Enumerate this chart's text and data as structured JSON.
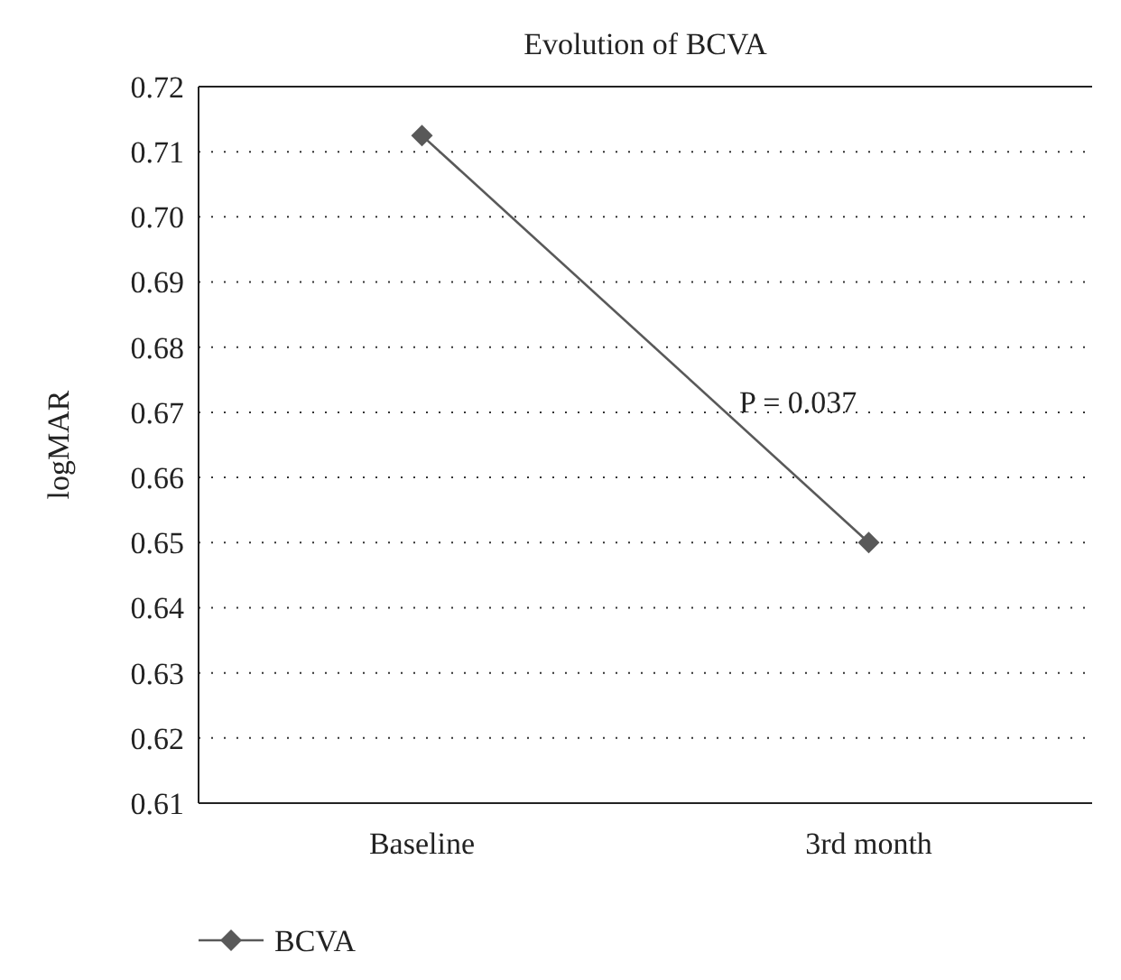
{
  "chart_data": {
    "type": "line",
    "title": "Evolution of BCVA",
    "ylabel": "logMAR",
    "categories": [
      "Baseline",
      "3rd month"
    ],
    "series": [
      {
        "name": "BCVA",
        "color": "#595959",
        "values": [
          0.7125,
          0.65
        ]
      }
    ],
    "ylim": [
      0.61,
      0.72
    ],
    "yticks": [
      0.61,
      0.62,
      0.63,
      0.64,
      0.65,
      0.66,
      0.67,
      0.68,
      0.69,
      {
        "value": 0.7,
        "label": "0.70"
      },
      0.71,
      0.72
    ],
    "grid": "y",
    "legend": "bottom left",
    "marker": "diamond",
    "line_style": "solid",
    "annotations": [
      "P = 0.037"
    ]
  }
}
